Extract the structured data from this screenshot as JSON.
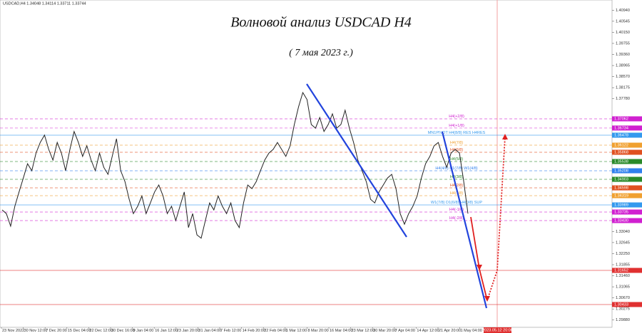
{
  "header": {
    "symbol_info": "USDCAD,H4  1.34048 1.34114 1.33711 1.33744"
  },
  "chart_data": {
    "type": "line",
    "title": "Волновой анализ USDCAD H4",
    "subtitle": "( 7 мая 2023 г.)",
    "x_labels": [
      "23 Nov 2022",
      "30 Nov 12:00",
      "7 Dec 20:00",
      "15 Dec 04:00",
      "22 Dec 12:00",
      "30 Dec 16:00",
      "9 Jan 04:00",
      "16 Jan 12:00",
      "23 Jan 20:00",
      "31 Jan 04:00",
      "7 Feb 12:00",
      "14 Feb 20:00",
      "22 Feb 04:00",
      "1 Mar 12:00",
      "8 Mar 20:00",
      "16 Mar 04:00",
      "23 Mar 12:00",
      "30 Mar 20:00",
      "7 Apr 04:00",
      "14 Apr 12:00",
      "21 Apr 20:00",
      "1 May 04:00"
    ],
    "highlight_x_label": "2023.05.12 20:00",
    "series": [
      {
        "color": "#222222",
        "values": [
          1.3381,
          1.3368,
          1.3323,
          1.3394,
          1.3445,
          1.3495,
          1.3546,
          1.3521,
          1.3584,
          1.3622,
          1.3648,
          1.3597,
          1.3559,
          1.3622,
          1.3584,
          1.3521,
          1.3597,
          1.3661,
          1.3622,
          1.3572,
          1.361,
          1.3559,
          1.3521,
          1.3584,
          1.3533,
          1.3508,
          1.3572,
          1.3635,
          1.3521,
          1.3482,
          1.3419,
          1.3368,
          1.3394,
          1.3431,
          1.3368,
          1.3406,
          1.3445,
          1.347,
          1.3431,
          1.3368,
          1.3394,
          1.3343,
          1.3394,
          1.3445,
          1.3318,
          1.3368,
          1.3292,
          1.328,
          1.3343,
          1.3406,
          1.3381,
          1.3431,
          1.3394,
          1.3368,
          1.3406,
          1.3343,
          1.3318,
          1.3406,
          1.347,
          1.3457,
          1.3482,
          1.3521,
          1.3559,
          1.3584,
          1.3597,
          1.3622,
          1.3597,
          1.3572,
          1.361,
          1.3686,
          1.3749,
          1.38,
          1.3775,
          1.3686,
          1.3673,
          1.3711,
          1.3661,
          1.3686,
          1.3724,
          1.3673,
          1.3686,
          1.3737,
          1.3673,
          1.3622,
          1.3559,
          1.3521,
          1.3482,
          1.3419,
          1.3406,
          1.3445,
          1.347,
          1.3495,
          1.3508,
          1.3457,
          1.3368,
          1.333,
          1.3368,
          1.3394,
          1.3431,
          1.3495,
          1.3546,
          1.3572,
          1.361,
          1.3622,
          1.3572,
          1.3533,
          1.3584,
          1.3597,
          1.3584,
          1.3482,
          1.3368
        ]
      }
    ],
    "ylim": [
      1.2962,
      1.41304
    ],
    "yticks": [
      {
        "value": 1.2988,
        "label": "1.29880"
      },
      {
        "value": 1.30275,
        "label": "1.30275"
      },
      {
        "value": 1.3067,
        "label": "1.30670"
      },
      {
        "value": 1.31065,
        "label": "1.31065"
      },
      {
        "value": 1.3146,
        "label": "1.31460"
      },
      {
        "value": 1.31855,
        "label": "1.31855"
      },
      {
        "value": 1.3225,
        "label": "1.32250"
      },
      {
        "value": 1.32645,
        "label": "1.32645"
      },
      {
        "value": 1.3304,
        "label": "1.33040"
      },
      {
        "value": 1.3778,
        "label": "1.37780"
      },
      {
        "value": 1.38175,
        "label": "1.38175"
      },
      {
        "value": 1.3857,
        "label": "1.38570"
      },
      {
        "value": 1.38965,
        "label": "1.38965"
      },
      {
        "value": 1.3936,
        "label": "1.39360"
      },
      {
        "value": 1.39755,
        "label": "1.39755"
      },
      {
        "value": 1.4015,
        "label": "1.40150"
      },
      {
        "value": 1.40545,
        "label": "1.40545"
      },
      {
        "value": 1.4094,
        "label": "1.40940"
      }
    ],
    "levels": [
      {
        "label": "H4(+2/8)",
        "price": 1.37062,
        "price_label": "1.37062",
        "color": "#d020d0"
      },
      {
        "label": "H4(+1/8)",
        "price": 1.36734,
        "price_label": "1.36734",
        "color": "#d020d0"
      },
      {
        "label": "MN1PIVOT H4(8/8) RES H4RES",
        "price": 1.36478,
        "price_label": "1.36478",
        "color": "#3399ee"
      },
      {
        "label": "H4(7/8)",
        "price": 1.36122,
        "price_label": "1.36122",
        "color": "#f0a030"
      },
      {
        "label": "H4(6/8)",
        "price": 1.35868,
        "price_label": "1.35868",
        "color": "#e05020"
      },
      {
        "label": "H4(5/8)",
        "price": 1.35538,
        "price_label": "1.35538",
        "color": "#2a8a2a"
      },
      {
        "label": "H4(4/8) D1(7/8) W1(4/8)",
        "price": 1.35208,
        "price_label": "1.35208",
        "color": "#3080ee"
      },
      {
        "label": "H4(3/8)",
        "price": 1.34903,
        "price_label": "1.34903",
        "color": "#2a8a2a"
      },
      {
        "label": "H4(2/8)",
        "price": 1.34598,
        "price_label": "1.34598",
        "color": "#e05020"
      },
      {
        "label": "H4(1/8)",
        "price": 1.34319,
        "price_label": "1.34319",
        "color": "#f0a030"
      },
      {
        "label": "W1(7/8) D1(6/8) H4(0/8) SUP",
        "price": 1.33989,
        "price_label": "1.33989",
        "color": "#3399ee"
      },
      {
        "label": "H4(-1/8)",
        "price": 1.33735,
        "price_label": "1.33735",
        "color": "#d020d0"
      },
      {
        "label": "H4(-2/8)",
        "price": 1.3343,
        "price_label": "1.33430",
        "color": "#d020d0"
      },
      {
        "price": 1.31652,
        "price_label": "1.31652",
        "color": "#e03030"
      },
      {
        "price": 1.30433,
        "price_label": "1.30433",
        "color": "#e03030"
      }
    ]
  }
}
